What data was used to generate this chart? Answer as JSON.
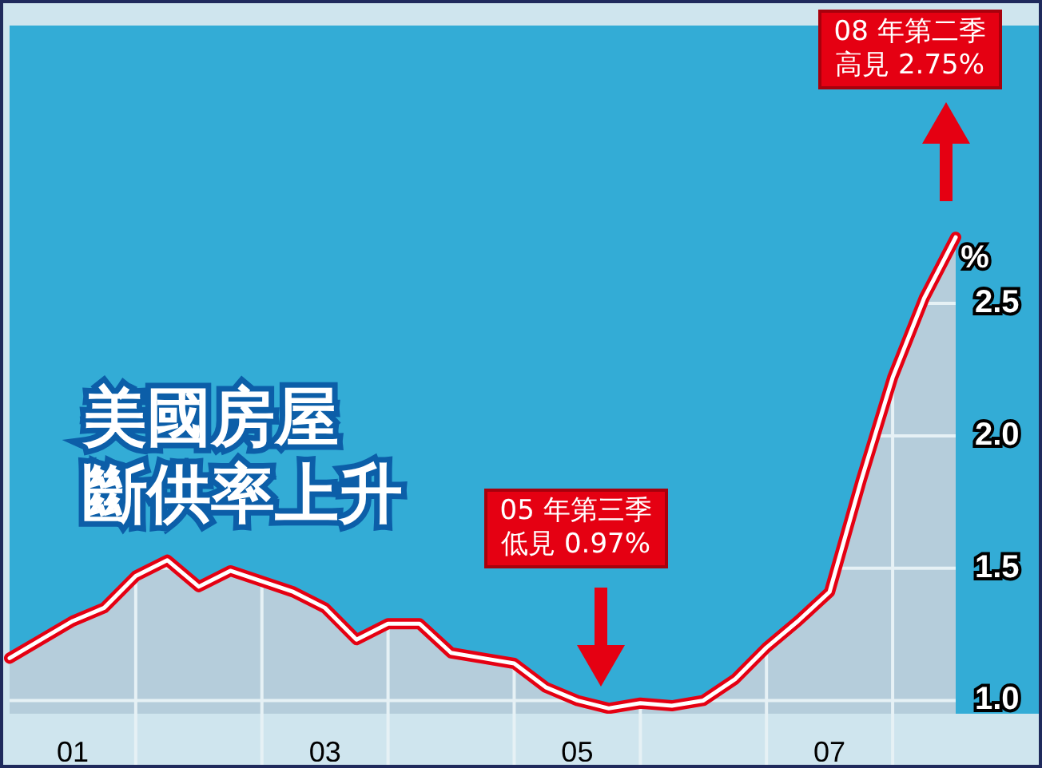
{
  "chart_data": {
    "type": "area",
    "title": "美國房屋",
    "subtitle": "斷供率上升",
    "ylabel": "%",
    "categories": [
      null,
      null,
      "01",
      null,
      null,
      null,
      null,
      null,
      null,
      null,
      "03",
      null,
      null,
      null,
      null,
      null,
      null,
      null,
      "05",
      null,
      null,
      null,
      null,
      null,
      null,
      null,
      "07",
      null,
      null,
      null,
      null
    ],
    "series": [
      {
        "color": "#e50012",
        "values": [
          1.16,
          1.23,
          1.3,
          1.35,
          1.47,
          1.53,
          1.43,
          1.49,
          1.45,
          1.41,
          1.35,
          1.23,
          1.29,
          1.29,
          1.18,
          1.16,
          1.14,
          1.05,
          1.0,
          0.97,
          0.99,
          0.98,
          1.0,
          1.08,
          1.2,
          1.3,
          1.41,
          1.83,
          2.22,
          2.52,
          2.75
        ]
      }
    ],
    "ylim": [
      0.95,
      3.55
    ],
    "yticks": [
      {
        "value": 1,
        "label": "1.0"
      },
      1.5,
      {
        "value": 2,
        "label": "2.0"
      },
      2.5
    ],
    "grid": true,
    "legend": false,
    "annotations": [
      "08 年第二季高見 2.75%",
      "05 年第三季低見 0.97%"
    ]
  }
}
